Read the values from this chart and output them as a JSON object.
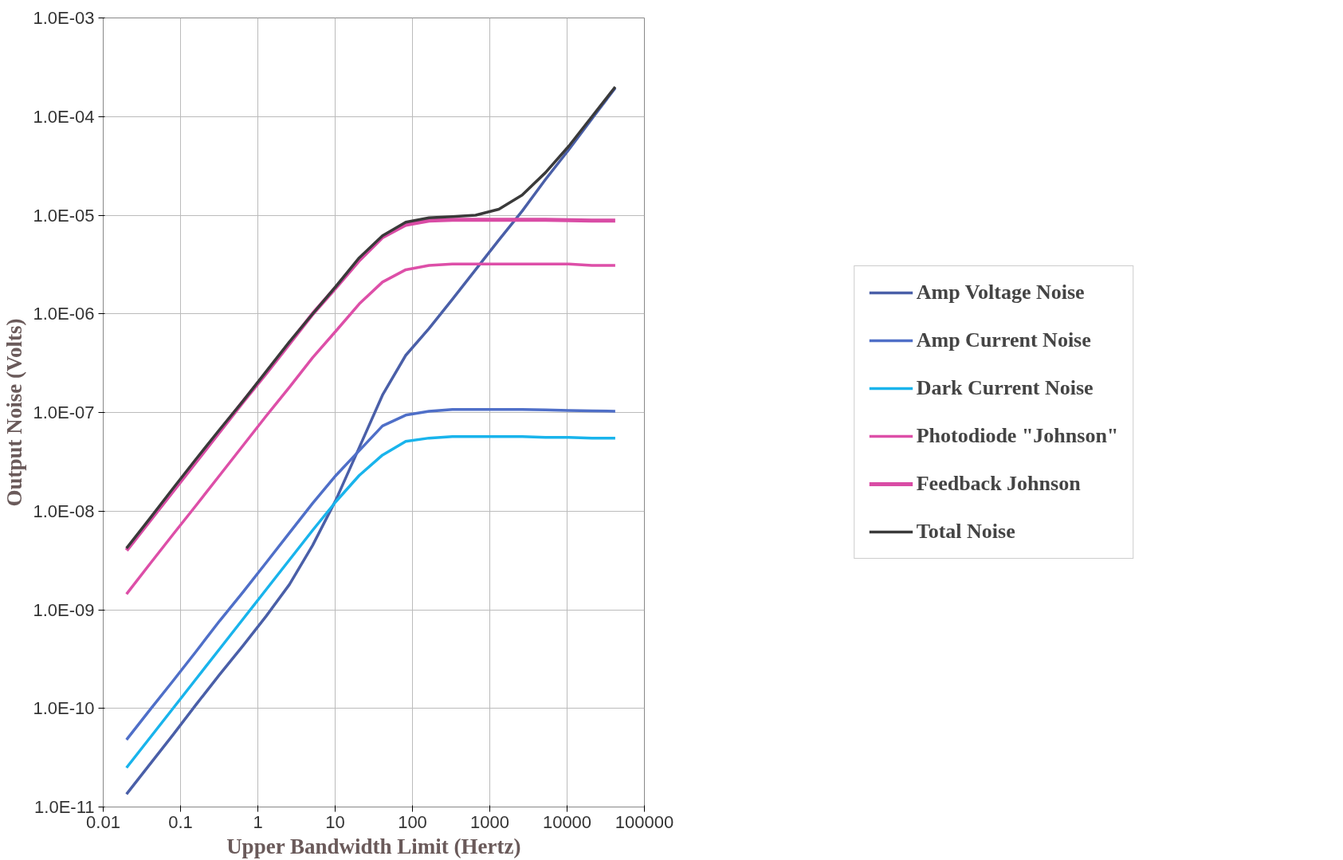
{
  "chart_data": {
    "type": "line",
    "xlabel": "Upper Bandwidth Limit (Hertz)",
    "ylabel": "Output Noise (Volts)",
    "x": [
      0.02,
      0.04,
      0.08,
      0.16,
      0.32,
      0.64,
      1.28,
      2.56,
      5.12,
      10.24,
      20.48,
      40.96,
      81.92,
      163.84,
      327.68,
      655.36,
      1310.72,
      2621.44,
      5242.88,
      10485.76,
      20971.52,
      41943.04
    ],
    "series": [
      {
        "name": "Amp Voltage Noise",
        "color": "#4a5fa8",
        "values": [
          1.35e-11,
          2.7e-11,
          5.4e-11,
          1.1e-10,
          2.2e-10,
          4.3e-10,
          8.6e-10,
          1.8e-09,
          4.5e-09,
          1.3e-08,
          4.4e-08,
          1.5e-07,
          3.8e-07,
          7.1e-07,
          1.4e-06,
          2.8e-06,
          5.6e-06,
          1.1e-05,
          2.3e-05,
          4.6e-05,
          9.5e-05,
          0.000195
        ]
      },
      {
        "name": "Amp Current Noise",
        "color": "#4f6fc8",
        "values": [
          4.8e-11,
          9.6e-11,
          1.9e-10,
          3.8e-10,
          7.7e-10,
          1.5e-09,
          3e-09,
          6e-09,
          1.2e-08,
          2.3e-08,
          4.1e-08,
          7.3e-08,
          9.4e-08,
          1.03e-07,
          1.07e-07,
          1.07e-07,
          1.07e-07,
          1.07e-07,
          1.06e-07,
          1.05e-07,
          1.04e-07,
          1.03e-07
        ]
      },
      {
        "name": "Dark Current Noise",
        "color": "#19b4ec",
        "values": [
          2.5e-11,
          5e-11,
          1e-10,
          2e-10,
          4e-10,
          8e-10,
          1.6e-09,
          3.2e-09,
          6.4e-09,
          1.25e-08,
          2.3e-08,
          3.7e-08,
          5.1e-08,
          5.5e-08,
          5.7e-08,
          5.7e-08,
          5.7e-08,
          5.7e-08,
          5.6e-08,
          5.6e-08,
          5.5e-08,
          5.5e-08
        ]
      },
      {
        "name": "Photodiode \"Johnson\"",
        "color": "#dd4fa8",
        "values": [
          1.44e-09,
          2.9e-09,
          5.8e-09,
          1.15e-08,
          2.3e-08,
          4.6e-08,
          9.2e-08,
          1.8e-07,
          3.6e-07,
          6.7e-07,
          1.26e-06,
          2.1e-06,
          2.8e-06,
          3.1e-06,
          3.2e-06,
          3.2e-06,
          3.2e-06,
          3.2e-06,
          3.2e-06,
          3.2e-06,
          3.1e-06,
          3.1e-06
        ]
      },
      {
        "name": "Feedback Johnson",
        "color": "#d94ca5",
        "values": [
          4e-09,
          8e-09,
          1.6e-08,
          3.2e-08,
          6.4e-08,
          1.28e-07,
          2.5e-07,
          5e-07,
          1e-06,
          1.85e-06,
          3.5e-06,
          6e-06,
          8e-06,
          8.8e-06,
          9e-06,
          9e-06,
          9e-06,
          9e-06,
          9e-06,
          8.9e-06,
          8.8e-06,
          8.8e-06
        ]
      },
      {
        "name": "Total Noise",
        "color": "#3a3a3a",
        "values": [
          4.2e-09,
          8.4e-09,
          1.7e-08,
          3.4e-08,
          6.7e-08,
          1.3e-07,
          2.6e-07,
          5.2e-07,
          1e-06,
          1.9e-06,
          3.7e-06,
          6.2e-06,
          8.5e-06,
          9.4e-06,
          9.7e-06,
          1e-05,
          1.15e-05,
          1.6e-05,
          2.7e-05,
          5e-05,
          0.0001,
          0.0002
        ]
      }
    ],
    "log": "xy",
    "xlim": [
      0.01,
      100000
    ],
    "ylim": [
      1e-11,
      0.001
    ],
    "xticks": [
      0.01,
      0.1,
      1,
      10,
      100,
      1000,
      10000,
      100000
    ],
    "yticks": [
      {
        "value": 1e-11,
        "label": "1.0E-11"
      },
      {
        "value": 1e-10,
        "label": "1.0E-10"
      },
      {
        "value": 1e-09,
        "label": "1.0E-09"
      },
      {
        "value": 1e-08,
        "label": "1.0E-08"
      },
      {
        "value": 1e-07,
        "label": "1.0E-07"
      },
      {
        "value": 1e-06,
        "label": "1.0E-06"
      },
      {
        "value": 1e-05,
        "label": "1.0E-05"
      },
      {
        "value": 0.0001,
        "label": "1.0E-04"
      },
      {
        "value": 0.001,
        "label": "1.0E-03"
      }
    ],
    "grid": true,
    "legend": "right",
    "marker": "none",
    "line_style": "solid"
  }
}
